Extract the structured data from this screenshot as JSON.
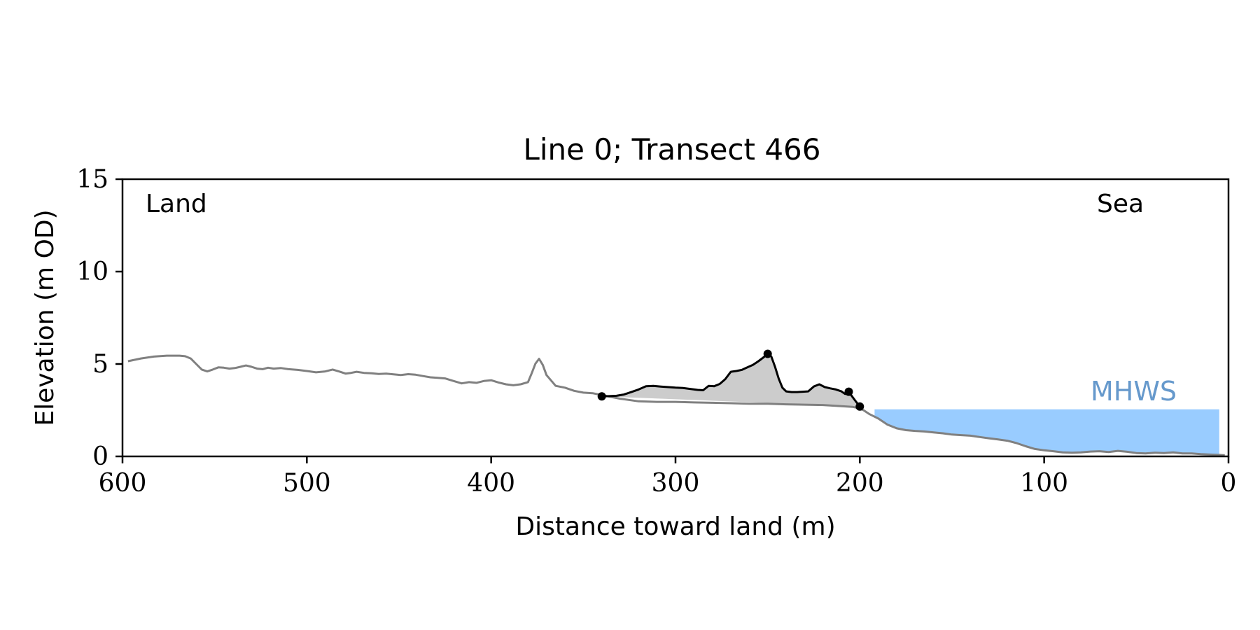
{
  "chart_data": {
    "type": "line",
    "title": "Line 0; Transect 466",
    "xlabel": "Distance toward land (m)",
    "ylabel": "Elevation (m OD)",
    "xlim": [
      600,
      0
    ],
    "ylim": [
      0,
      15
    ],
    "x_ticks": [
      600,
      500,
      400,
      300,
      200,
      100,
      0
    ],
    "y_ticks": [
      0,
      5,
      10,
      15
    ],
    "grid": false,
    "annotations": {
      "land": "Land",
      "sea": "Sea",
      "mhws": "MHWS"
    },
    "colors": {
      "profile": "#808080",
      "dune": "#000000",
      "dune_fill": "#cccccc",
      "water": "#99ccff",
      "mhws_label": "#6699cc"
    },
    "mhws": {
      "level": 2.55,
      "x_range": [
        192,
        5
      ]
    },
    "series": [
      {
        "key": "profile",
        "x": [
          597,
          590,
          583,
          576,
          569,
          566,
          563,
          560,
          557,
          554,
          551,
          548,
          545,
          542,
          539,
          536,
          533,
          530,
          527,
          524,
          521,
          518,
          514,
          510,
          505,
          500,
          495,
          490,
          486,
          482,
          479,
          476,
          473,
          469,
          465,
          461,
          457,
          453,
          449,
          445,
          441,
          437,
          433,
          429,
          425,
          421,
          416,
          412,
          408,
          404,
          400,
          396,
          392,
          388,
          384,
          380,
          378,
          376,
          374,
          372,
          370,
          365,
          360,
          355,
          350,
          345,
          340,
          330,
          320,
          310,
          300,
          290,
          280,
          270,
          260,
          250,
          240,
          230,
          220,
          210,
          204,
          200,
          198,
          195,
          190,
          185,
          180,
          175,
          170,
          165,
          160,
          155,
          150,
          145,
          140,
          135,
          130,
          125,
          120,
          115,
          110,
          105,
          100,
          95,
          90,
          85,
          80,
          75,
          70,
          65,
          60,
          55,
          50,
          45,
          40,
          35,
          30,
          25,
          20,
          15,
          10,
          5,
          2
        ],
        "y": [
          5.15,
          5.3,
          5.4,
          5.45,
          5.45,
          5.42,
          5.3,
          5.0,
          4.7,
          4.6,
          4.7,
          4.82,
          4.8,
          4.75,
          4.78,
          4.85,
          4.92,
          4.85,
          4.75,
          4.72,
          4.8,
          4.75,
          4.78,
          4.72,
          4.68,
          4.62,
          4.55,
          4.6,
          4.7,
          4.58,
          4.48,
          4.52,
          4.58,
          4.52,
          4.5,
          4.46,
          4.48,
          4.44,
          4.4,
          4.45,
          4.42,
          4.35,
          4.28,
          4.25,
          4.22,
          4.1,
          3.95,
          4.02,
          3.98,
          4.08,
          4.12,
          4.0,
          3.9,
          3.85,
          3.9,
          4.02,
          4.5,
          5.02,
          5.28,
          4.95,
          4.4,
          3.82,
          3.72,
          3.55,
          3.45,
          3.42,
          3.32,
          3.12,
          2.98,
          2.95,
          2.95,
          2.92,
          2.9,
          2.88,
          2.85,
          2.85,
          2.82,
          2.8,
          2.78,
          2.72,
          2.68,
          2.6,
          2.5,
          2.3,
          2.05,
          1.72,
          1.52,
          1.42,
          1.38,
          1.35,
          1.3,
          1.25,
          1.18,
          1.15,
          1.12,
          1.05,
          0.98,
          0.92,
          0.85,
          0.72,
          0.55,
          0.4,
          0.33,
          0.28,
          0.22,
          0.2,
          0.22,
          0.26,
          0.28,
          0.24,
          0.3,
          0.25,
          0.18,
          0.16,
          0.2,
          0.18,
          0.22,
          0.16,
          0.16,
          0.12,
          0.1,
          0.08,
          0.06
        ]
      },
      {
        "key": "dune",
        "x": [
          340,
          336,
          332,
          328,
          324,
          320,
          316,
          312,
          308,
          304,
          300,
          296,
          292,
          288,
          285,
          282,
          279,
          276,
          273,
          270,
          267,
          264,
          261,
          258,
          255,
          252,
          250,
          248,
          246,
          244,
          242,
          240,
          237,
          234,
          231,
          228,
          225,
          222,
          219,
          216,
          213,
          210,
          208,
          206,
          204,
          202,
          200
        ],
        "y": [
          3.25,
          3.26,
          3.28,
          3.35,
          3.48,
          3.62,
          3.8,
          3.82,
          3.78,
          3.75,
          3.72,
          3.7,
          3.65,
          3.6,
          3.58,
          3.82,
          3.8,
          3.92,
          4.18,
          4.58,
          4.62,
          4.68,
          4.82,
          4.95,
          5.15,
          5.38,
          5.55,
          5.4,
          4.85,
          4.2,
          3.72,
          3.52,
          3.48,
          3.48,
          3.5,
          3.52,
          3.78,
          3.9,
          3.75,
          3.68,
          3.62,
          3.52,
          3.38,
          3.5,
          3.22,
          2.95,
          2.7
        ]
      }
    ],
    "markers": [
      {
        "x": 340,
        "y": 3.25
      },
      {
        "x": 250,
        "y": 5.55
      },
      {
        "x": 206,
        "y": 3.5
      },
      {
        "x": 200,
        "y": 2.7
      }
    ],
    "dune_base": {
      "x": [
        340,
        200
      ],
      "y": [
        3.25,
        2.7
      ]
    }
  }
}
